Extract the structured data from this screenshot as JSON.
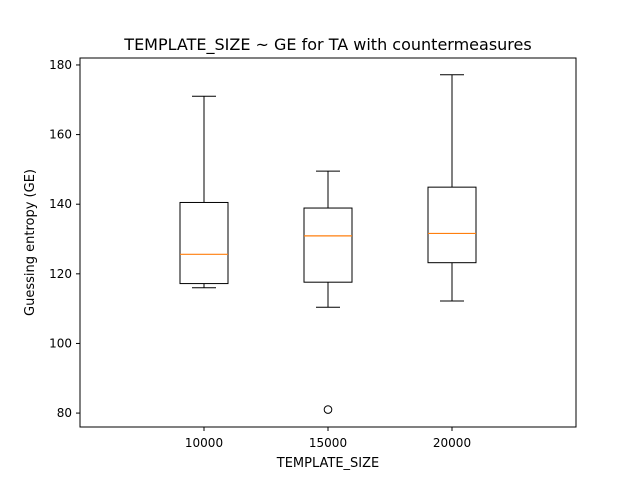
{
  "chart_data": {
    "type": "box",
    "title": "TEMPLATE_SIZE ~ GE for TA with countermeasures",
    "xlabel": "TEMPLATE_SIZE",
    "ylabel": "Guessing entropy (GE)",
    "categories": [
      "10000",
      "15000",
      "20000"
    ],
    "ylim": [
      76,
      182
    ],
    "yticks": [
      80,
      100,
      120,
      140,
      160,
      180
    ],
    "grid": false,
    "legend": "none",
    "boxes": [
      {
        "category": "10000",
        "whisker_low": 116,
        "q1": 117.2,
        "median": 125.6,
        "q3": 140.5,
        "whisker_high": 171,
        "outliers": []
      },
      {
        "category": "15000",
        "whisker_low": 110.4,
        "q1": 117.6,
        "median": 130.9,
        "q3": 138.9,
        "whisker_high": 149.5,
        "outliers": [
          81
        ]
      },
      {
        "category": "20000",
        "whisker_low": 112.2,
        "q1": 123.2,
        "median": 131.6,
        "q3": 144.9,
        "whisker_high": 177.2,
        "outliers": []
      }
    ],
    "colors": {
      "box": "#000000",
      "median": "#ff7f0e",
      "outlier": "#000000"
    }
  }
}
